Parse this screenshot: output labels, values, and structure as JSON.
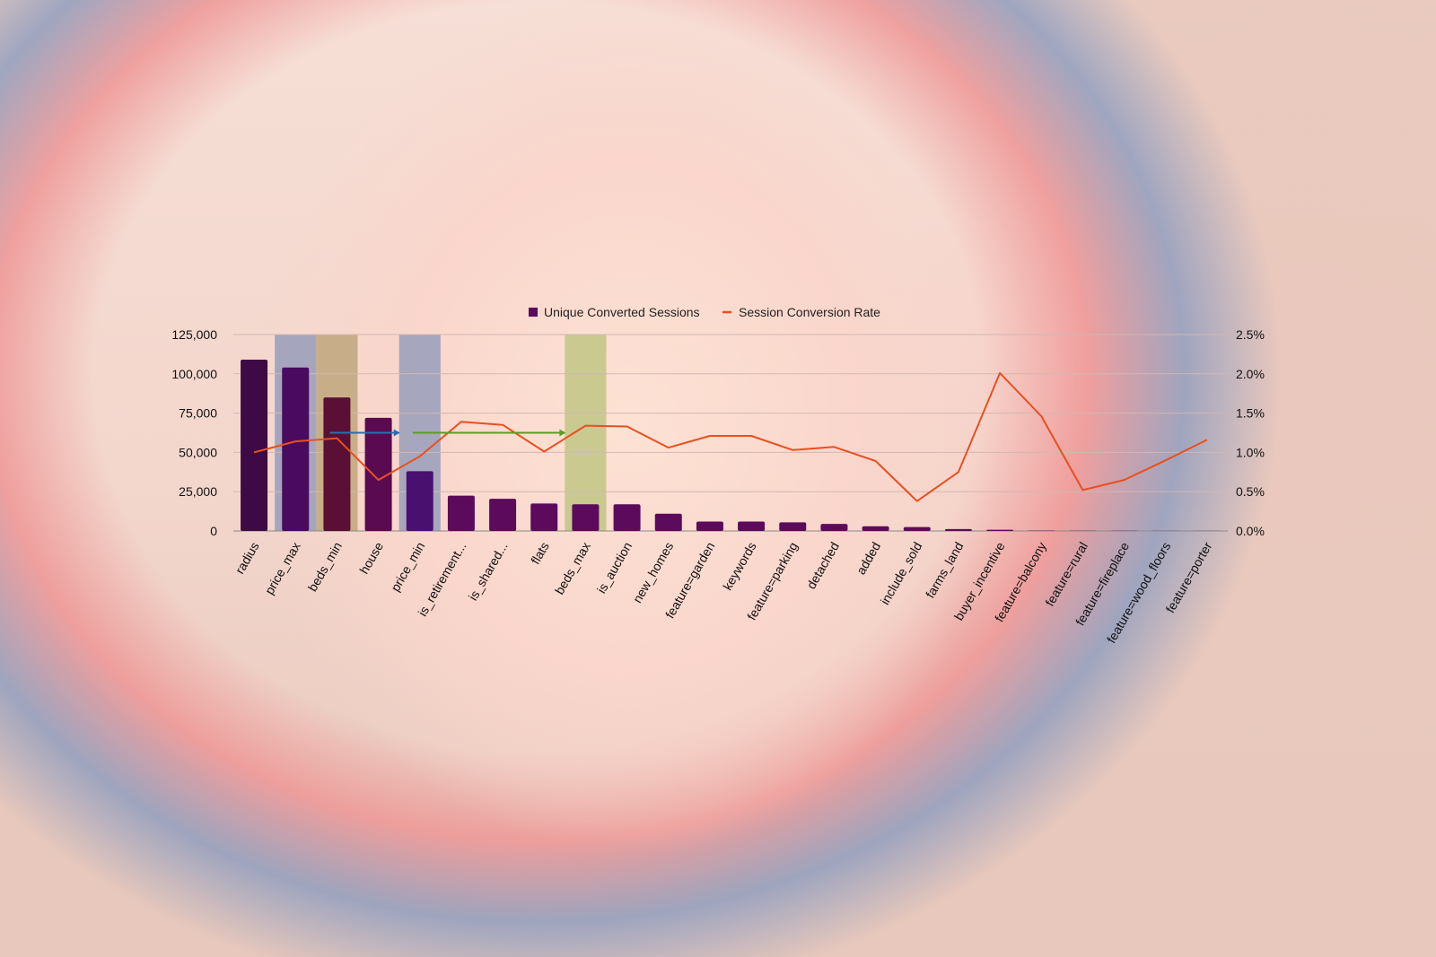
{
  "chart_data": {
    "type": "bar",
    "categories": [
      "radius",
      "price_max",
      "beds_min",
      "house",
      "price_min",
      "is_retirement...",
      "is_shared...",
      "flats",
      "beds_max",
      "is_auction",
      "new_homes",
      "feature=garden",
      "keywords",
      "feature=parking",
      "detached",
      "added",
      "include_sold",
      "farms_land",
      "buyer_incentive",
      "feature=balcony",
      "feature=rural",
      "feature=fireplace",
      "feature=wood_floors",
      "feature=porter"
    ],
    "series": [
      {
        "name": "Unique Converted Sessions",
        "type": "bar",
        "axis": "left",
        "color": "#5c0a5c",
        "values": [
          109000,
          104000,
          85000,
          72000,
          38000,
          22500,
          20500,
          17500,
          17000,
          17000,
          11000,
          6000,
          6000,
          5500,
          4500,
          3000,
          2500,
          1200,
          800,
          200,
          150,
          120,
          100,
          80
        ]
      },
      {
        "name": "Session Conversion Rate",
        "type": "line",
        "axis": "right",
        "color": "#e8501f",
        "values": [
          1.0,
          1.14,
          1.18,
          0.65,
          0.95,
          1.39,
          1.35,
          1.01,
          1.34,
          1.33,
          1.06,
          1.21,
          1.21,
          1.03,
          1.07,
          0.89,
          0.38,
          0.75,
          2.01,
          1.46,
          0.52,
          0.65,
          0.9,
          1.16
        ]
      }
    ],
    "left_axis": {
      "ylim": [
        0,
        125000
      ],
      "ticks": [
        "0",
        "25,000",
        "50,000",
        "75,000",
        "100,000",
        "125,000"
      ]
    },
    "right_axis": {
      "ylim": [
        0,
        2.5
      ],
      "ticks": [
        "0.0%",
        "0.5%",
        "1.0%",
        "1.5%",
        "2.0%",
        "2.5%"
      ]
    },
    "legend_position": "top-center",
    "grid": true,
    "highlights": [
      {
        "category": "price_max",
        "color": "#8a95b8"
      },
      {
        "category": "beds_min",
        "color": "#b8a070"
      },
      {
        "category": "price_min",
        "color": "#8a95b8"
      },
      {
        "category": "beds_max",
        "color": "#b8c27a"
      }
    ],
    "arrows": [
      {
        "from": "beds_min",
        "to": "price_min",
        "at_rate": 1.25,
        "color": "#2a6fb0"
      },
      {
        "from": "price_min",
        "to": "beds_max",
        "at_rate": 1.25,
        "color": "#5aa020"
      }
    ]
  },
  "legend": {
    "bar_label": "Unique Converted Sessions",
    "line_label": "Session Conversion Rate",
    "bar_color": "#5c0a5c",
    "line_color": "#e8501f"
  }
}
